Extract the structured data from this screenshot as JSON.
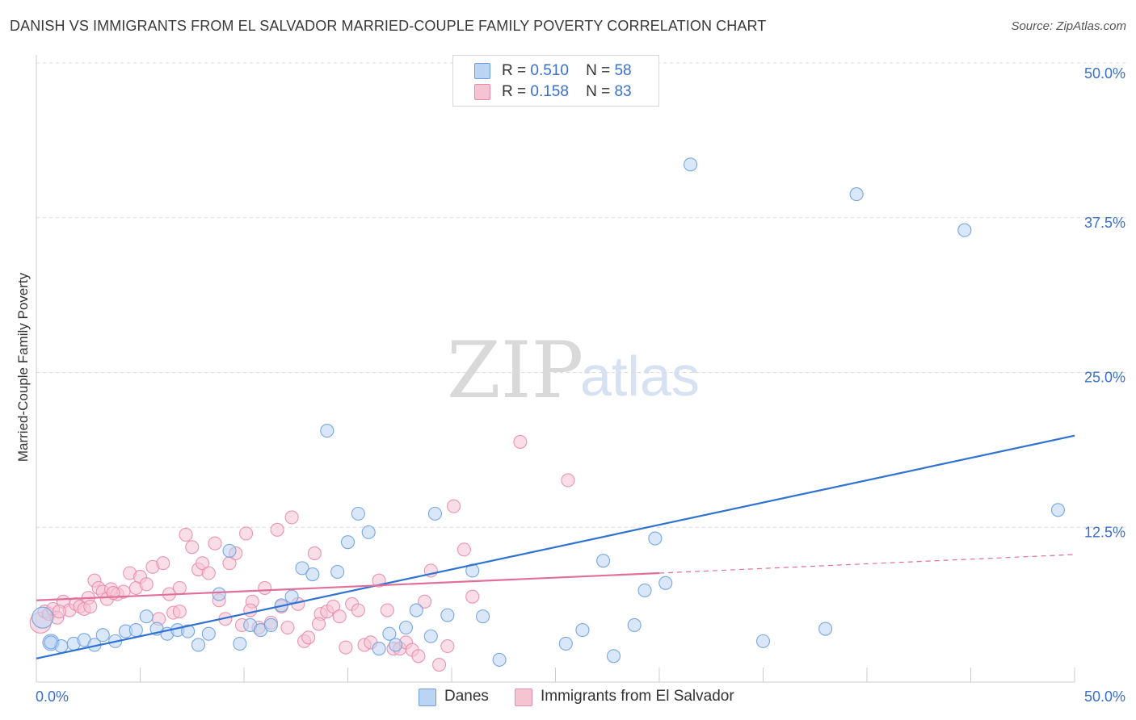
{
  "chart_data": {
    "type": "scatter",
    "title": "DANISH VS IMMIGRANTS FROM EL SALVADOR MARRIED-COUPLE FAMILY POVERTY CORRELATION CHART",
    "source": "Source: ZipAtlas.com",
    "ylabel": "Married-Couple Family Poverty",
    "xlabel": "",
    "xlim": [
      0,
      50
    ],
    "ylim": [
      0,
      50
    ],
    "x_tick_labels": [
      "0.0%",
      "50.0%"
    ],
    "y_ticks": [
      {
        "value": 12.5,
        "label": "12.5%"
      },
      {
        "value": 25.0,
        "label": "25.0%"
      },
      {
        "value": 37.5,
        "label": "37.5%"
      },
      {
        "value": 50.0,
        "label": "50.0%"
      }
    ],
    "watermark": {
      "part1": "ZIP",
      "part2": "atlas"
    },
    "series": [
      {
        "name": "Danes",
        "color": "#6a9ee0",
        "fill": "#bcd4f3",
        "R": "0.510",
        "N": "58",
        "trend": {
          "x": [
            0,
            50
          ],
          "y": [
            1.9,
            19.9
          ],
          "color": "#2f72d2"
        },
        "points": [
          [
            0.3,
            5.2
          ],
          [
            0.7,
            3.2
          ],
          [
            1.2,
            2.9
          ],
          [
            1.8,
            3.1
          ],
          [
            2.3,
            3.4
          ],
          [
            2.8,
            3.0
          ],
          [
            3.2,
            3.8
          ],
          [
            3.8,
            3.3
          ],
          [
            4.3,
            4.1
          ],
          [
            4.8,
            4.2
          ],
          [
            5.3,
            5.3
          ],
          [
            5.8,
            4.3
          ],
          [
            6.3,
            3.9
          ],
          [
            6.8,
            4.2
          ],
          [
            7.3,
            4.1
          ],
          [
            7.8,
            3.0
          ],
          [
            8.3,
            3.9
          ],
          [
            8.8,
            7.1
          ],
          [
            9.3,
            10.6
          ],
          [
            9.8,
            3.1
          ],
          [
            10.3,
            4.6
          ],
          [
            10.8,
            4.2
          ],
          [
            11.3,
            4.6
          ],
          [
            11.8,
            6.2
          ],
          [
            12.3,
            6.9
          ],
          [
            12.8,
            9.2
          ],
          [
            13.3,
            8.7
          ],
          [
            14.0,
            20.3
          ],
          [
            14.5,
            8.9
          ],
          [
            15.0,
            11.3
          ],
          [
            15.5,
            13.6
          ],
          [
            16.0,
            12.1
          ],
          [
            16.5,
            2.7
          ],
          [
            17.0,
            3.9
          ],
          [
            17.3,
            3.0
          ],
          [
            17.8,
            4.4
          ],
          [
            18.3,
            5.8
          ],
          [
            19.0,
            3.7
          ],
          [
            19.2,
            13.6
          ],
          [
            19.8,
            5.4
          ],
          [
            21.0,
            9.0
          ],
          [
            21.5,
            5.3
          ],
          [
            22.3,
            1.8
          ],
          [
            25.5,
            3.1
          ],
          [
            26.3,
            4.2
          ],
          [
            27.3,
            9.8
          ],
          [
            27.8,
            2.1
          ],
          [
            28.8,
            4.6
          ],
          [
            29.3,
            7.4
          ],
          [
            29.8,
            11.6
          ],
          [
            30.3,
            8.0
          ],
          [
            31.5,
            41.8
          ],
          [
            35.0,
            3.3
          ],
          [
            38.0,
            4.3
          ],
          [
            39.5,
            39.4
          ],
          [
            44.7,
            36.5
          ],
          [
            49.2,
            13.9
          ],
          [
            0.7,
            3.2
          ]
        ]
      },
      {
        "name": "Immigrants from El Salvador",
        "color": "#e98aa8",
        "fill": "#f6c3d3",
        "R": "0.158",
        "N": "83",
        "trend": {
          "x": [
            0,
            30
          ],
          "y": [
            6.6,
            8.8
          ],
          "color": "#e0709a",
          "dash_to": {
            "x": 50,
            "y": 10.3
          }
        },
        "points": [
          [
            0.2,
            4.8
          ],
          [
            0.4,
            5.7
          ],
          [
            0.6,
            5.5
          ],
          [
            0.8,
            5.9
          ],
          [
            1.0,
            5.2
          ],
          [
            1.3,
            6.5
          ],
          [
            1.6,
            5.8
          ],
          [
            1.9,
            6.3
          ],
          [
            2.1,
            6.1
          ],
          [
            2.3,
            5.9
          ],
          [
            2.5,
            6.8
          ],
          [
            2.8,
            8.2
          ],
          [
            3.0,
            7.6
          ],
          [
            3.2,
            7.3
          ],
          [
            3.4,
            6.7
          ],
          [
            3.6,
            7.5
          ],
          [
            3.9,
            7.1
          ],
          [
            4.2,
            7.3
          ],
          [
            4.5,
            8.8
          ],
          [
            4.8,
            7.6
          ],
          [
            5.0,
            8.5
          ],
          [
            5.3,
            7.9
          ],
          [
            5.6,
            9.3
          ],
          [
            5.9,
            5.1
          ],
          [
            6.1,
            9.6
          ],
          [
            6.4,
            7.1
          ],
          [
            6.6,
            5.6
          ],
          [
            6.9,
            7.6
          ],
          [
            7.2,
            11.9
          ],
          [
            7.5,
            10.9
          ],
          [
            7.8,
            9.1
          ],
          [
            8.0,
            9.6
          ],
          [
            8.3,
            8.8
          ],
          [
            8.6,
            11.2
          ],
          [
            8.8,
            6.6
          ],
          [
            9.1,
            5.1
          ],
          [
            9.3,
            9.6
          ],
          [
            9.6,
            10.4
          ],
          [
            9.9,
            4.6
          ],
          [
            10.1,
            12.0
          ],
          [
            10.4,
            6.5
          ],
          [
            10.7,
            4.4
          ],
          [
            11.0,
            7.6
          ],
          [
            11.3,
            4.8
          ],
          [
            11.6,
            12.3
          ],
          [
            11.8,
            6.1
          ],
          [
            12.1,
            4.4
          ],
          [
            12.3,
            13.3
          ],
          [
            12.6,
            6.3
          ],
          [
            12.9,
            3.3
          ],
          [
            13.1,
            3.6
          ],
          [
            13.4,
            10.4
          ],
          [
            13.7,
            5.5
          ],
          [
            14.0,
            5.7
          ],
          [
            14.3,
            6.1
          ],
          [
            14.6,
            5.3
          ],
          [
            14.9,
            2.8
          ],
          [
            15.2,
            6.3
          ],
          [
            15.5,
            5.8
          ],
          [
            15.8,
            3.0
          ],
          [
            16.1,
            3.2
          ],
          [
            16.5,
            8.2
          ],
          [
            16.9,
            5.8
          ],
          [
            17.2,
            2.7
          ],
          [
            17.5,
            2.7
          ],
          [
            17.8,
            3.2
          ],
          [
            18.1,
            2.6
          ],
          [
            18.4,
            2.1
          ],
          [
            18.7,
            6.5
          ],
          [
            19.0,
            9.0
          ],
          [
            19.4,
            1.4
          ],
          [
            19.8,
            2.9
          ],
          [
            20.1,
            14.2
          ],
          [
            20.6,
            10.7
          ],
          [
            21.0,
            6.9
          ],
          [
            23.3,
            19.4
          ],
          [
            25.6,
            16.3
          ],
          [
            1.1,
            5.7
          ],
          [
            2.6,
            6.1
          ],
          [
            3.7,
            7.2
          ],
          [
            6.9,
            5.7
          ],
          [
            10.3,
            5.8
          ],
          [
            13.6,
            4.7
          ]
        ]
      }
    ]
  },
  "legend_top": [
    {
      "r_label": "R =",
      "r_value": "0.510",
      "n_label": "N =",
      "n_value": "58"
    },
    {
      "r_label": "R =",
      "r_value": "0.158",
      "n_label": "N =",
      "n_value": "83"
    }
  ],
  "legend_bottom": [
    "Danes",
    "Immigrants from El Salvador"
  ]
}
